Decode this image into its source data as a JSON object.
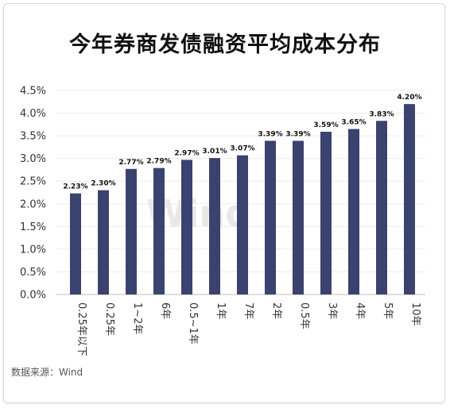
{
  "title": "今年券商发债融资平均成本分布",
  "source": "数据来源：Wind",
  "watermark": "Wind",
  "chart_data": {
    "type": "bar",
    "title": "今年券商发债融资平均成本分布",
    "xlabel": "",
    "ylabel": "",
    "categories": [
      "0.25年以下",
      "0.25年",
      "1~2年",
      "6年",
      "0.5~1年",
      "1年",
      "7年",
      "2年",
      "0.5年",
      "3年",
      "4年",
      "5年",
      "10年"
    ],
    "values": [
      2.23,
      2.3,
      2.77,
      2.79,
      2.97,
      3.01,
      3.07,
      3.39,
      3.39,
      3.59,
      3.65,
      3.83,
      4.2
    ],
    "value_labels": [
      "2.23%",
      "2.30%",
      "2.77%",
      "2.79%",
      "2.97%",
      "3.01%",
      "3.07%",
      "3.39%",
      "3.39%",
      "3.59%",
      "3.65%",
      "3.83%",
      "4.20%"
    ],
    "ylim": [
      0,
      4.5
    ],
    "yticks": [
      "0.0%",
      "0.5%",
      "1.0%",
      "1.5%",
      "2.0%",
      "2.5%",
      "3.0%",
      "3.5%",
      "4.0%",
      "4.5%"
    ],
    "grid": true,
    "legend": "none",
    "bar_color": "#3a4270"
  }
}
